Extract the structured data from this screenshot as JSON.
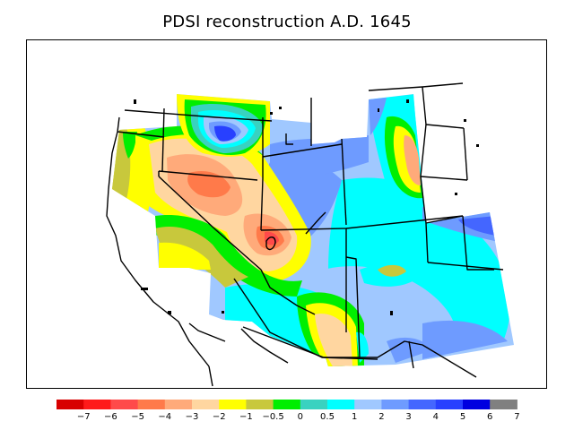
{
  "title": "PDSI reconstruction A.D. 1645",
  "legend": {
    "colors": [
      "#d80000",
      "#ff1a1a",
      "#ff4a4a",
      "#ff7a4a",
      "#ffaa7a",
      "#ffd6a0",
      "#ffff00",
      "#c8c83c",
      "#00ee00",
      "#39d2c0",
      "#00ffff",
      "#a0c8ff",
      "#6e9bff",
      "#4466ff",
      "#2840ff",
      "#0000e0",
      "#808080"
    ],
    "ticks": [
      "−7",
      "−6",
      "−5",
      "−4",
      "−3",
      "−2",
      "−1",
      "−0.5",
      "0",
      "0.5",
      "1",
      "2",
      "3",
      "4",
      "5",
      "6",
      "7"
    ]
  }
}
